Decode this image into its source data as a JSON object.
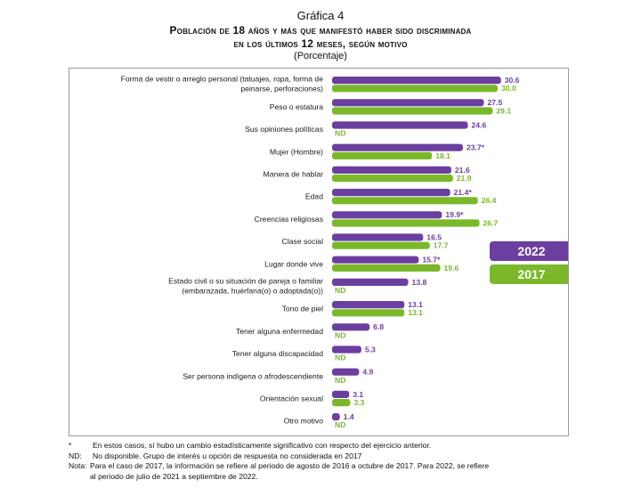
{
  "header": {
    "figure_number": "Gráfica 4",
    "title_line1": "Población de 18 años y más que manifestó haber sido discriminada",
    "title_line2": "en los últimos 12 meses, según motivo",
    "subtitle": "(Porcentaje)"
  },
  "chart_data": {
    "type": "bar",
    "orientation": "horizontal",
    "grid": false,
    "legend_position": "right",
    "categories": [
      [
        "Forma de vestir o arreglo personal (tatuajes, ropa, forma de",
        "peinarse, perforaciones)"
      ],
      [
        "Peso o estatura"
      ],
      [
        "Sus opiniones políticas"
      ],
      [
        "Mujer (Hombre)"
      ],
      [
        "Manera de hablar"
      ],
      [
        "Edad"
      ],
      [
        "Creencias religiosas"
      ],
      [
        "Clase social"
      ],
      [
        "Lugar donde vive"
      ],
      [
        "Estado civil o su situación de pareja o familiar",
        "(embarazada, huérfana(o) o adoptada(o))"
      ],
      [
        "Tono de piel"
      ],
      [
        "Tener alguna enfermedad"
      ],
      [
        "Tener alguna discapacidad"
      ],
      [
        "Ser persona indígena o afrodescendiente"
      ],
      [
        "Orientación sexual"
      ],
      [
        "Otro motivo"
      ]
    ],
    "series": [
      {
        "name": "2022",
        "color": "#6b3fa0",
        "values": [
          30.6,
          27.5,
          24.6,
          23.7,
          21.6,
          21.4,
          19.9,
          16.5,
          15.7,
          13.8,
          13.1,
          6.8,
          5.3,
          4.9,
          3.1,
          1.4
        ],
        "labels": [
          "30.6",
          "27.5",
          "24.6",
          "23.7*",
          "21.6",
          "21.4*",
          "19.9*",
          "16.5",
          "15.7*",
          "13.8",
          "13.1",
          "6.8",
          "5.3",
          "4.9",
          "3.1",
          "1.4"
        ]
      },
      {
        "name": "2017",
        "color": "#7ab82a",
        "values": [
          30.0,
          29.1,
          null,
          18.1,
          21.9,
          26.4,
          26.7,
          17.7,
          19.6,
          null,
          13.1,
          null,
          null,
          null,
          3.3,
          null
        ],
        "labels": [
          "30.0",
          "29.1",
          "ND",
          "18.1",
          "21.9",
          "26.4",
          "26.7",
          "17.7",
          "19.6",
          "ND",
          "13.1",
          "ND",
          "ND",
          "ND",
          "3.3",
          "ND"
        ]
      }
    ],
    "xlim": [
      0,
      35
    ]
  },
  "notes": [
    {
      "mark": "*",
      "text": "En estos casos, sí hubo un cambio estadísticamente significativo con respecto del ejercicio anterior."
    },
    {
      "mark": "ND:",
      "text": "No disponible. Grupo de interés u opción de respuesta no considerada en 2017"
    },
    {
      "mark": "Nota:",
      "text": "Para el caso de 2017, la información se refiere al periodo de agosto de 2016 a octubre de 2017. Para 2022, se refiere"
    },
    {
      "mark": "",
      "text": "al periodo de julio de 2021 a septiembre de 2022."
    }
  ]
}
